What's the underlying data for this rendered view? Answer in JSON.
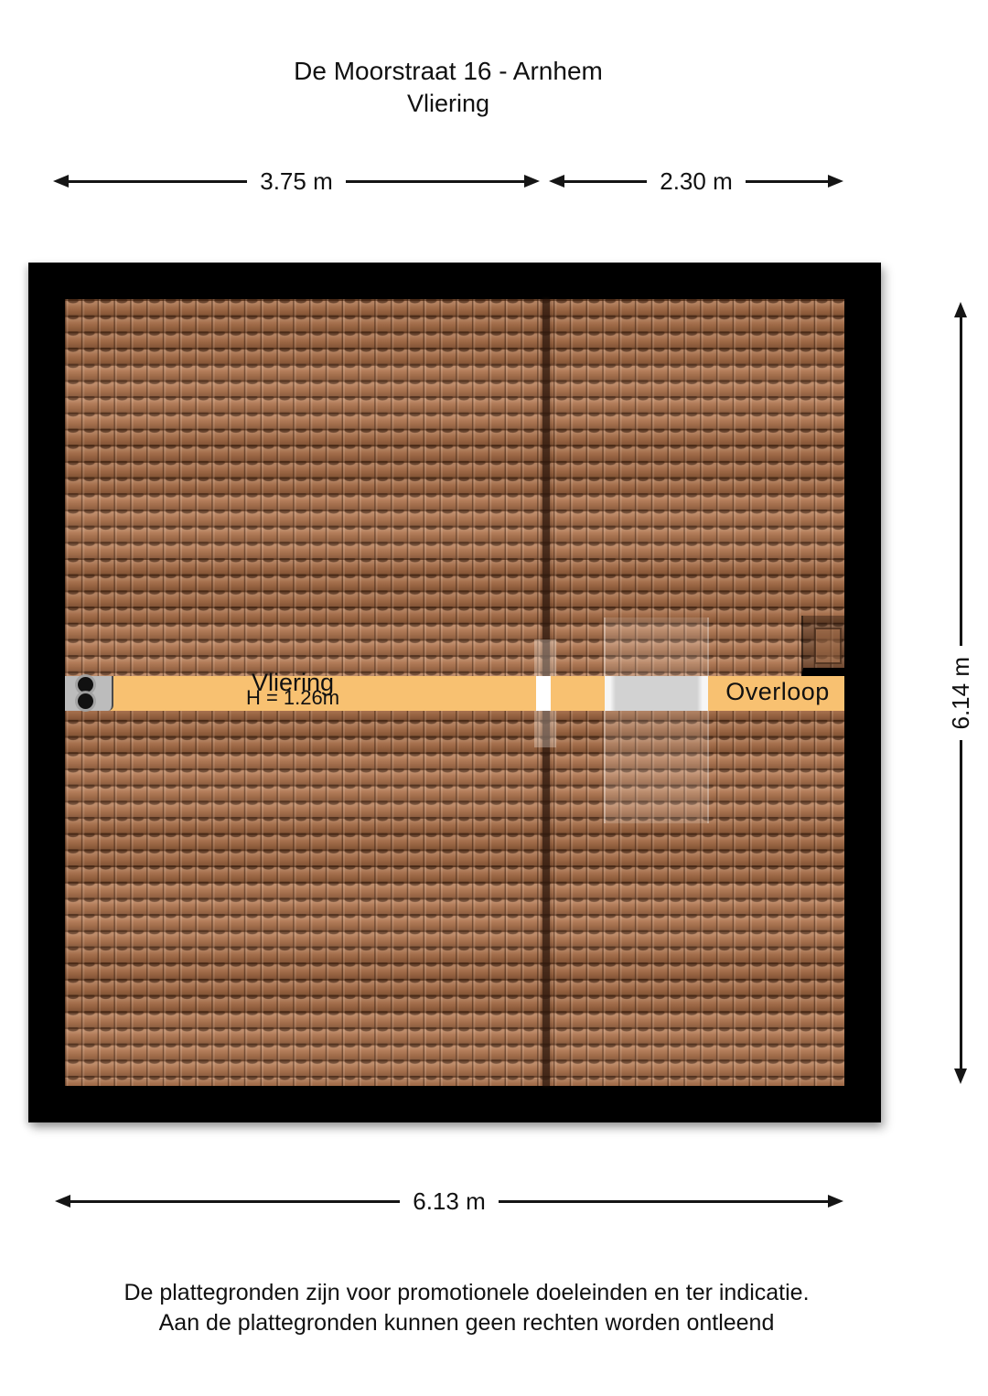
{
  "title": {
    "address": "De Moorstraat 16 - Arnhem",
    "floor": "Vliering"
  },
  "dimensions": {
    "top_left_width": "3.75 m",
    "top_right_width": "2.30 m",
    "right_height": "6.14 m",
    "bottom_width": "6.13 m"
  },
  "floorplan": {
    "rooms": [
      {
        "name": "Vliering",
        "ceiling_height": "H = 1.26m"
      },
      {
        "name": "Overloop",
        "ceiling_height": ""
      }
    ],
    "features": [
      "roof-tiles",
      "roof-seam",
      "skylight",
      "stairs-opening",
      "boiler-fixture",
      "chimney"
    ]
  },
  "footer": {
    "line1": "De plattegronden zijn voor promotionele doeleinden en ter indicatie.",
    "line2": "Aan de plattegronden kunnen geen rechten worden ontleend"
  },
  "colors": {
    "roof_tile": "#ab6f48",
    "floor_strip": "#f8c171",
    "wall": "#000000",
    "stairs": "#d2d2d2",
    "fixture_gray": "#bcbcbc"
  }
}
